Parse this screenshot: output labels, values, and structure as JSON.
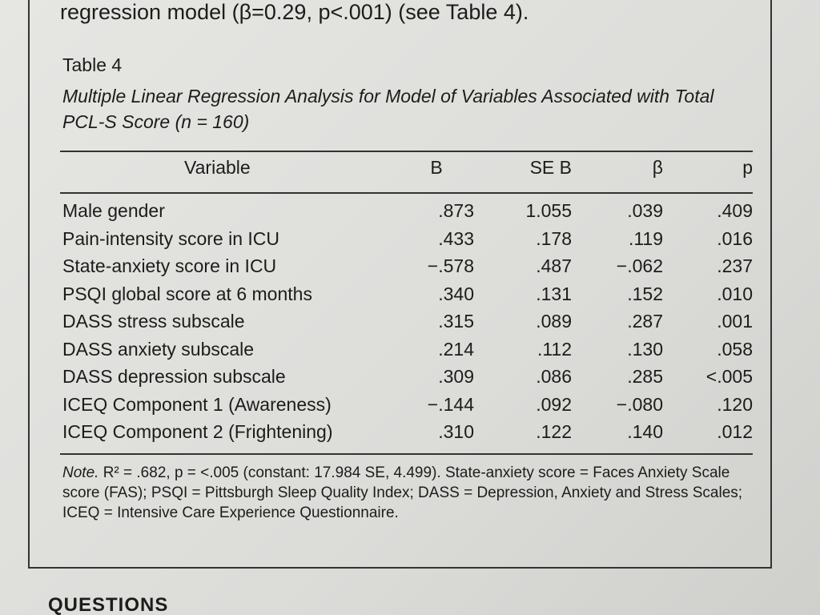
{
  "intro": "regression model (β=0.29, p<.001) (see Table 4).",
  "table": {
    "number": "Table 4",
    "caption": "Multiple Linear Regression Analysis for Model of Variables Associated with Total PCL-S Score (n = 160)",
    "columns": [
      "Variable",
      "B",
      "SE B",
      "β",
      "p"
    ],
    "rows": [
      [
        "Male gender",
        ".873",
        "1.055",
        ".039",
        ".409"
      ],
      [
        "Pain-intensity score in ICU",
        ".433",
        ".178",
        ".119",
        ".016"
      ],
      [
        "State-anxiety score in ICU",
        "−.578",
        ".487",
        "−.062",
        ".237"
      ],
      [
        "PSQI global score at 6 months",
        ".340",
        ".131",
        ".152",
        ".010"
      ],
      [
        "DASS stress subscale",
        ".315",
        ".089",
        ".287",
        ".001"
      ],
      [
        "DASS anxiety subscale",
        ".214",
        ".112",
        ".130",
        ".058"
      ],
      [
        "DASS depression subscale",
        ".309",
        ".086",
        ".285",
        "<.005"
      ],
      [
        "ICEQ Component 1 (Awareness)",
        "−.144",
        ".092",
        "−.080",
        ".120"
      ],
      [
        "ICEQ Component 2 (Frightening)",
        ".310",
        ".122",
        ".140",
        ".012"
      ]
    ],
    "note": {
      "label": "Note.",
      "text": "R² = .682, p = <.005 (constant: 17.984 SE, 4.499). State-anxiety score = Faces Anxiety Scale score (FAS); PSQI = Pittsburgh Sleep Quality Index; DASS = Depression, Anxiety and Stress Scales; ICEQ = Intensive Care Experience Questionnaire."
    }
  },
  "footer_heading": "QUESTIONS"
}
